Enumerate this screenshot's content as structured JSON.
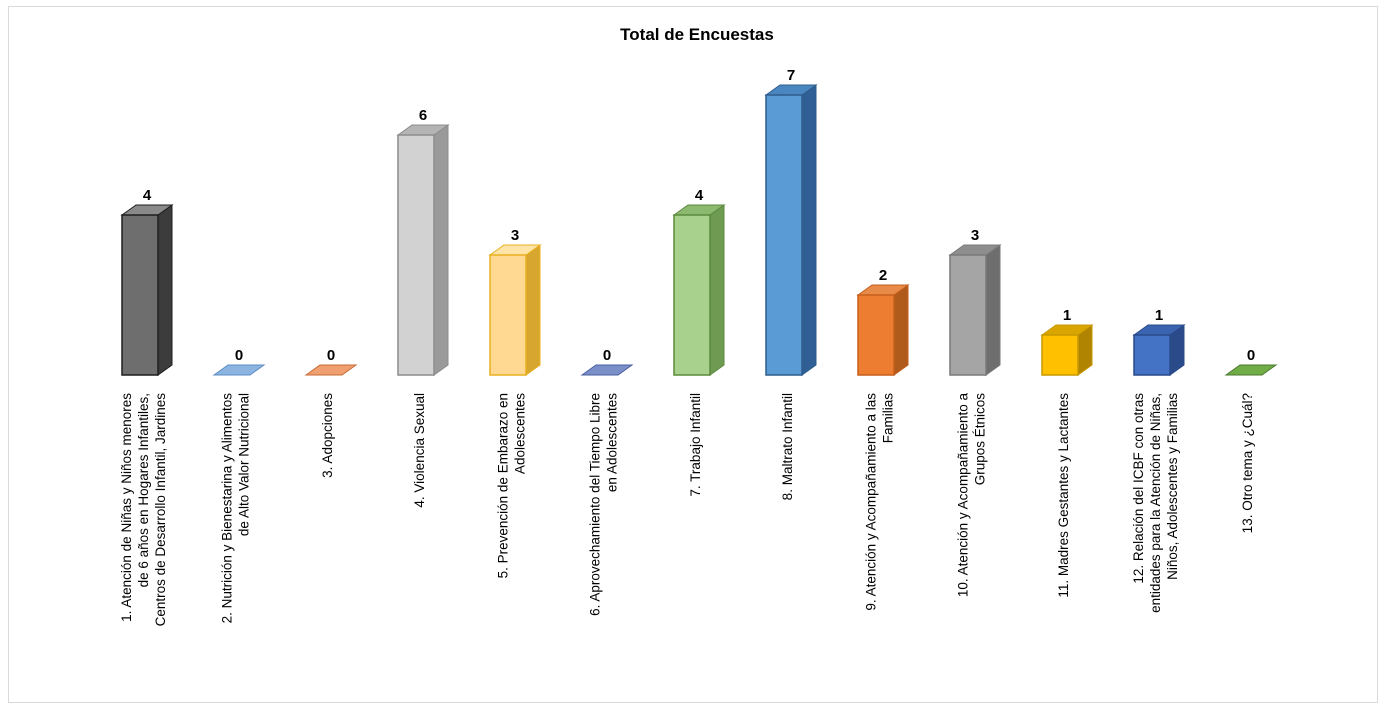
{
  "chart_data": {
    "type": "bar",
    "title": "Total de Encuestas",
    "categories": [
      [
        "1. Atención de Niñas y Niños menores",
        "de 6 años en Hogares Infantiles,",
        "Centros de Desarrollo Infantil, Jardines"
      ],
      [
        "2. Nutrición y Bienestarina y Alimentos",
        "de Alto Valor Nutricional"
      ],
      [
        "3. Adopciones"
      ],
      [
        "4. Violencia Sexual"
      ],
      [
        "5. Prevención de Embarazo en",
        "Adolescentes"
      ],
      [
        "6. Aprovechamiento del Tiempo Libre",
        "en Adolescentes"
      ],
      [
        "7. Trabajo Infantil"
      ],
      [
        "8. Maltrato Infantil"
      ],
      [
        "9. Atención y Acompañamiento a las",
        "Familias"
      ],
      [
        "10. Atención y Acompañamiento a",
        "Grupos Étnicos"
      ],
      [
        "11. Madres Gestantes y Lactantes"
      ],
      [
        "12. Relación del ICBF con otras",
        "entidades para la Atención de Niñas,",
        "Niños, Adolescentes y Familias"
      ],
      [
        "13. Otro tema y ¿Cuál?"
      ]
    ],
    "values": [
      4,
      0,
      0,
      6,
      3,
      0,
      4,
      7,
      2,
      3,
      1,
      1,
      0
    ],
    "data_labels": [
      "4",
      "0",
      "0",
      "6",
      "3",
      "0",
      "4",
      "7",
      "2",
      "3",
      "1",
      "1",
      "0"
    ],
    "colors": [
      {
        "front": "#6e6e6e",
        "side": "#3c3c3c",
        "top": "#8a8a8a",
        "stroke": "#1e1e1e"
      },
      {
        "front": "#8cb4e0",
        "side": "#5b8cc4",
        "top": "#8cb4e0",
        "stroke": "#5b8cc4"
      },
      {
        "front": "#f0a070",
        "side": "#c86a34",
        "top": "#f0a070",
        "stroke": "#c86a34"
      },
      {
        "front": "#d2d2d2",
        "side": "#9a9a9a",
        "top": "#b4b4b4",
        "stroke": "#8c8c8c"
      },
      {
        "front": "#ffd891",
        "side": "#d7a62e",
        "top": "#ffe4a8",
        "stroke": "#e8b020"
      },
      {
        "front": "#7b8fc8",
        "side": "#4a5ea0",
        "top": "#7b8fc8",
        "stroke": "#4a5ea0"
      },
      {
        "front": "#a9d18e",
        "side": "#6f9a52",
        "top": "#8cb870",
        "stroke": "#5a8a3c"
      },
      {
        "front": "#5b9bd5",
        "side": "#2f5f94",
        "top": "#4a86c0",
        "stroke": "#2e5d8c"
      },
      {
        "front": "#ed7d31",
        "side": "#b05a1c",
        "top": "#e88a48",
        "stroke": "#c65f1c"
      },
      {
        "front": "#a5a5a5",
        "side": "#6e6e6e",
        "top": "#8e8e8e",
        "stroke": "#7a7a7a"
      },
      {
        "front": "#ffc000",
        "side": "#b08400",
        "top": "#d9a500",
        "stroke": "#c89800"
      },
      {
        "front": "#4472c4",
        "side": "#2a4a8a",
        "top": "#3a64b0",
        "stroke": "#2a4a8a"
      },
      {
        "front": "#70ad47",
        "side": "#4a7a2c",
        "top": "#70ad47",
        "stroke": "#4a7a2c"
      }
    ],
    "ylim": [
      0,
      7
    ],
    "grid": false,
    "legend": "none"
  }
}
